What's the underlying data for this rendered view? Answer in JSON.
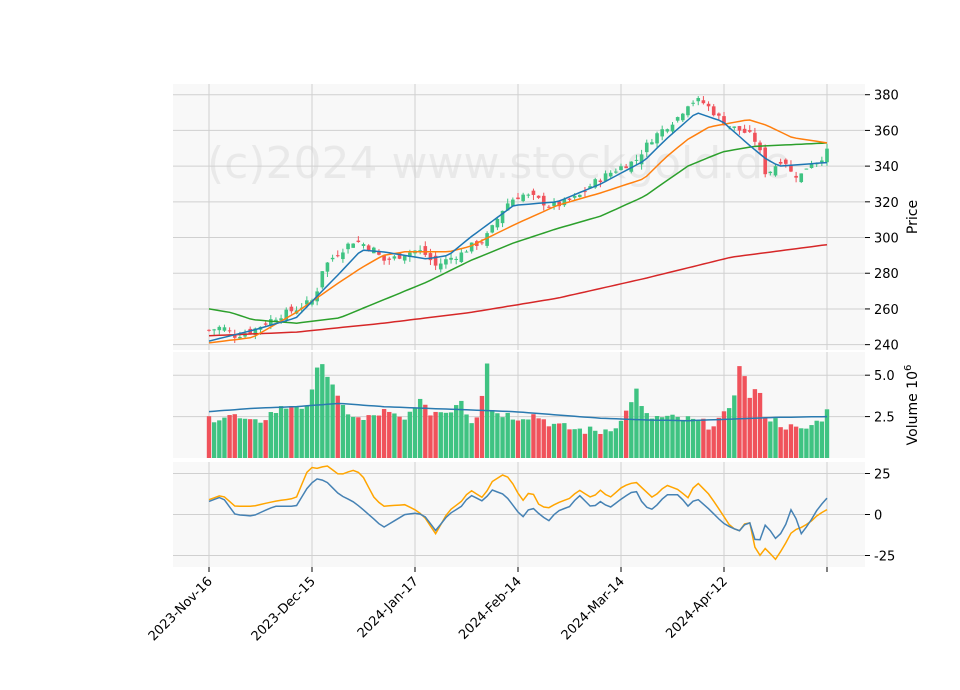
{
  "chart_data": {
    "type": "candlestick",
    "watermark": "(c)2024 www.stockgold.de",
    "x_ticks": [
      "2023-Nov-16",
      "2023-Dec-15",
      "2024-Jan-17",
      "2024-Feb-14",
      "2024-Mar-14",
      "2024-Apr-12"
    ],
    "n_sessions": 121,
    "price_panel": {
      "ylabel": "Price",
      "ylim": [
        237,
        386
      ],
      "y_ticks": [
        "240",
        "260",
        "280",
        "300",
        "320",
        "340",
        "360",
        "380"
      ],
      "close_keypoints": [
        [
          0,
          248
        ],
        [
          3,
          250
        ],
        [
          6,
          245
        ],
        [
          10,
          248
        ],
        [
          15,
          255
        ],
        [
          20,
          260
        ],
        [
          24,
          265
        ],
        [
          25,
          272
        ],
        [
          26,
          282
        ],
        [
          28,
          288
        ],
        [
          30,
          292
        ],
        [
          33,
          298
        ],
        [
          35,
          297
        ],
        [
          38,
          293
        ],
        [
          40,
          287
        ],
        [
          42,
          288
        ],
        [
          45,
          291
        ],
        [
          48,
          293
        ],
        [
          50,
          290
        ],
        [
          52,
          284
        ],
        [
          55,
          288
        ],
        [
          58,
          291
        ],
        [
          60,
          295
        ],
        [
          63,
          298
        ],
        [
          65,
          305
        ],
        [
          68,
          318
        ],
        [
          70,
          322
        ],
        [
          72,
          324
        ],
        [
          75,
          322
        ],
        [
          78,
          318
        ],
        [
          80,
          318
        ],
        [
          82,
          320
        ],
        [
          85,
          323
        ],
        [
          88,
          330
        ],
        [
          90,
          333
        ],
        [
          92,
          336
        ],
        [
          95,
          340
        ],
        [
          98,
          343
        ],
        [
          100,
          350
        ],
        [
          102,
          356
        ],
        [
          105,
          362
        ],
        [
          108,
          368
        ],
        [
          110,
          375
        ],
        [
          112,
          377
        ],
        [
          114,
          375
        ],
        [
          116,
          370
        ],
        [
          118,
          365
        ],
        [
          120,
          362
        ],
        [
          122,
          360
        ],
        [
          124,
          358
        ],
        [
          126,
          353
        ],
        [
          128,
          335
        ],
        [
          130,
          340
        ],
        [
          132,
          345
        ],
        [
          134,
          335
        ],
        [
          136,
          335
        ],
        [
          138,
          342
        ],
        [
          140,
          343
        ],
        [
          142,
          348
        ]
      ],
      "ma_colors": [
        "#1f77b4",
        "#ff7f0e",
        "#2ca02c",
        "#d62728"
      ],
      "ma_periods": [
        10,
        20,
        50,
        200
      ],
      "ma_keypoints": {
        "blue": [
          [
            0,
            242
          ],
          [
            10,
            248
          ],
          [
            20,
            255
          ],
          [
            30,
            280
          ],
          [
            35,
            293
          ],
          [
            40,
            292
          ],
          [
            45,
            290
          ],
          [
            50,
            288
          ],
          [
            55,
            290
          ],
          [
            60,
            300
          ],
          [
            70,
            318
          ],
          [
            80,
            320
          ],
          [
            90,
            330
          ],
          [
            100,
            343
          ],
          [
            105,
            355
          ],
          [
            112,
            370
          ],
          [
            118,
            365
          ],
          [
            124,
            352
          ],
          [
            128,
            344
          ],
          [
            131,
            340
          ],
          [
            142,
            342
          ]
        ],
        "orange": [
          [
            0,
            241
          ],
          [
            10,
            244
          ],
          [
            20,
            258
          ],
          [
            30,
            275
          ],
          [
            35,
            283
          ],
          [
            40,
            290
          ],
          [
            45,
            292
          ],
          [
            55,
            292
          ],
          [
            60,
            295
          ],
          [
            70,
            307
          ],
          [
            80,
            318
          ],
          [
            90,
            325
          ],
          [
            100,
            333
          ],
          [
            105,
            345
          ],
          [
            110,
            355
          ],
          [
            115,
            362
          ],
          [
            124,
            366
          ],
          [
            128,
            363
          ],
          [
            134,
            356
          ],
          [
            142,
            353
          ]
        ],
        "green": [
          [
            0,
            260
          ],
          [
            5,
            258
          ],
          [
            10,
            254
          ],
          [
            20,
            252
          ],
          [
            30,
            255
          ],
          [
            40,
            265
          ],
          [
            50,
            275
          ],
          [
            60,
            287
          ],
          [
            70,
            297
          ],
          [
            80,
            305
          ],
          [
            90,
            312
          ],
          [
            100,
            323
          ],
          [
            110,
            340
          ],
          [
            118,
            348
          ],
          [
            125,
            351
          ],
          [
            142,
            353
          ]
        ],
        "red": [
          [
            0,
            245
          ],
          [
            20,
            247
          ],
          [
            40,
            252
          ],
          [
            60,
            258
          ],
          [
            80,
            266
          ],
          [
            100,
            277
          ],
          [
            120,
            289
          ],
          [
            142,
            296
          ]
        ]
      }
    },
    "volume_panel": {
      "ylabel": "Volume  10",
      "ylabel_exponent": "6",
      "ylim": [
        0,
        6.4
      ],
      "y_ticks": [
        "2.5",
        "5.0"
      ],
      "up_color": "#3fc382",
      "down_color": "#f0525b",
      "volume_keypoints": [
        [
          0,
          2.4
        ],
        [
          5,
          2.6
        ],
        [
          10,
          2.0
        ],
        [
          15,
          2.8
        ],
        [
          20,
          3.3
        ],
        [
          23,
          2.8
        ],
        [
          25,
          6.0
        ],
        [
          26,
          5.8
        ],
        [
          30,
          3.2
        ],
        [
          32,
          2.8
        ],
        [
          35,
          2.2
        ],
        [
          40,
          2.8
        ],
        [
          45,
          2.2
        ],
        [
          48,
          3.6
        ],
        [
          50,
          2.8
        ],
        [
          55,
          2.8
        ],
        [
          58,
          3.6
        ],
        [
          60,
          2.2
        ],
        [
          62,
          2.8
        ],
        [
          64,
          6.0
        ],
        [
          65,
          2.9
        ],
        [
          70,
          2.5
        ],
        [
          75,
          2.6
        ],
        [
          80,
          1.9
        ],
        [
          85,
          1.7
        ],
        [
          90,
          1.6
        ],
        [
          95,
          2.2
        ],
        [
          98,
          4.2
        ],
        [
          100,
          2.5
        ],
        [
          105,
          2.4
        ],
        [
          110,
          2.3
        ],
        [
          115,
          2.0
        ],
        [
          120,
          2.8
        ],
        [
          122,
          6.0
        ],
        [
          124,
          3.7
        ],
        [
          126,
          4.2
        ],
        [
          128,
          2.5
        ],
        [
          132,
          2.0
        ],
        [
          136,
          1.6
        ],
        [
          140,
          2.2
        ],
        [
          142,
          2.8
        ]
      ],
      "avg_keypoints": [
        [
          0,
          2.8
        ],
        [
          10,
          3.0
        ],
        [
          20,
          3.1
        ],
        [
          30,
          3.3
        ],
        [
          40,
          3.1
        ],
        [
          50,
          3.0
        ],
        [
          60,
          2.9
        ],
        [
          70,
          2.8
        ],
        [
          80,
          2.6
        ],
        [
          90,
          2.4
        ],
        [
          100,
          2.3
        ],
        [
          110,
          2.25
        ],
        [
          120,
          2.35
        ],
        [
          130,
          2.45
        ],
        [
          142,
          2.5
        ]
      ],
      "avg_color": "#2a7ab0"
    },
    "indicator_panel": {
      "ylim": [
        -32,
        32
      ],
      "y_ticks": [
        "-25",
        "0",
        "25"
      ],
      "colors": [
        "#4682b4",
        "#ffa500"
      ],
      "blue_keypoints": [
        [
          0,
          8
        ],
        [
          3,
          11
        ],
        [
          6,
          0
        ],
        [
          10,
          -1
        ],
        [
          15,
          5
        ],
        [
          20,
          5
        ],
        [
          23,
          18
        ],
        [
          25,
          22
        ],
        [
          27,
          20
        ],
        [
          30,
          12
        ],
        [
          33,
          8
        ],
        [
          35,
          4
        ],
        [
          38,
          -3
        ],
        [
          40,
          -8
        ],
        [
          45,
          0
        ],
        [
          48,
          1
        ],
        [
          50,
          -2
        ],
        [
          52,
          -10
        ],
        [
          55,
          0
        ],
        [
          58,
          5
        ],
        [
          60,
          12
        ],
        [
          63,
          8
        ],
        [
          65,
          15
        ],
        [
          68,
          12
        ],
        [
          70,
          5
        ],
        [
          72,
          -2
        ],
        [
          74,
          5
        ],
        [
          76,
          0
        ],
        [
          78,
          -4
        ],
        [
          80,
          2
        ],
        [
          83,
          5
        ],
        [
          85,
          12
        ],
        [
          88,
          4
        ],
        [
          90,
          8
        ],
        [
          92,
          4
        ],
        [
          95,
          10
        ],
        [
          98,
          15
        ],
        [
          100,
          5
        ],
        [
          102,
          3
        ],
        [
          105,
          12
        ],
        [
          108,
          12
        ],
        [
          110,
          5
        ],
        [
          112,
          10
        ],
        [
          115,
          3
        ],
        [
          118,
          -5
        ],
        [
          120,
          -8
        ],
        [
          122,
          -10
        ],
        [
          124,
          -3
        ],
        [
          126,
          -20
        ],
        [
          128,
          -5
        ],
        [
          130,
          -15
        ],
        [
          132,
          -10
        ],
        [
          134,
          5
        ],
        [
          136,
          -12
        ],
        [
          138,
          -5
        ],
        [
          140,
          4
        ],
        [
          142,
          10
        ]
      ],
      "orange_keypoints": [
        [
          0,
          9
        ],
        [
          3,
          12
        ],
        [
          6,
          5
        ],
        [
          10,
          5
        ],
        [
          15,
          8
        ],
        [
          20,
          10
        ],
        [
          23,
          29
        ],
        [
          25,
          28
        ],
        [
          27,
          30
        ],
        [
          30,
          24
        ],
        [
          33,
          27
        ],
        [
          35,
          25
        ],
        [
          38,
          10
        ],
        [
          40,
          5
        ],
        [
          45,
          6
        ],
        [
          48,
          2
        ],
        [
          50,
          -3
        ],
        [
          52,
          -12
        ],
        [
          55,
          2
        ],
        [
          58,
          8
        ],
        [
          60,
          15
        ],
        [
          63,
          10
        ],
        [
          65,
          20
        ],
        [
          68,
          25
        ],
        [
          70,
          18
        ],
        [
          72,
          8
        ],
        [
          74,
          15
        ],
        [
          76,
          5
        ],
        [
          78,
          4
        ],
        [
          80,
          7
        ],
        [
          83,
          10
        ],
        [
          85,
          15
        ],
        [
          88,
          10
        ],
        [
          90,
          15
        ],
        [
          92,
          10
        ],
        [
          95,
          17
        ],
        [
          98,
          20
        ],
        [
          100,
          15
        ],
        [
          102,
          10
        ],
        [
          105,
          18
        ],
        [
          108,
          15
        ],
        [
          110,
          10
        ],
        [
          112,
          20
        ],
        [
          115,
          12
        ],
        [
          118,
          0
        ],
        [
          120,
          -8
        ],
        [
          122,
          -10
        ],
        [
          124,
          -2
        ],
        [
          126,
          -27
        ],
        [
          128,
          -20
        ],
        [
          130,
          -28
        ],
        [
          132,
          -20
        ],
        [
          134,
          -10
        ],
        [
          136,
          -8
        ],
        [
          138,
          -5
        ],
        [
          140,
          0
        ],
        [
          142,
          3
        ]
      ]
    }
  }
}
